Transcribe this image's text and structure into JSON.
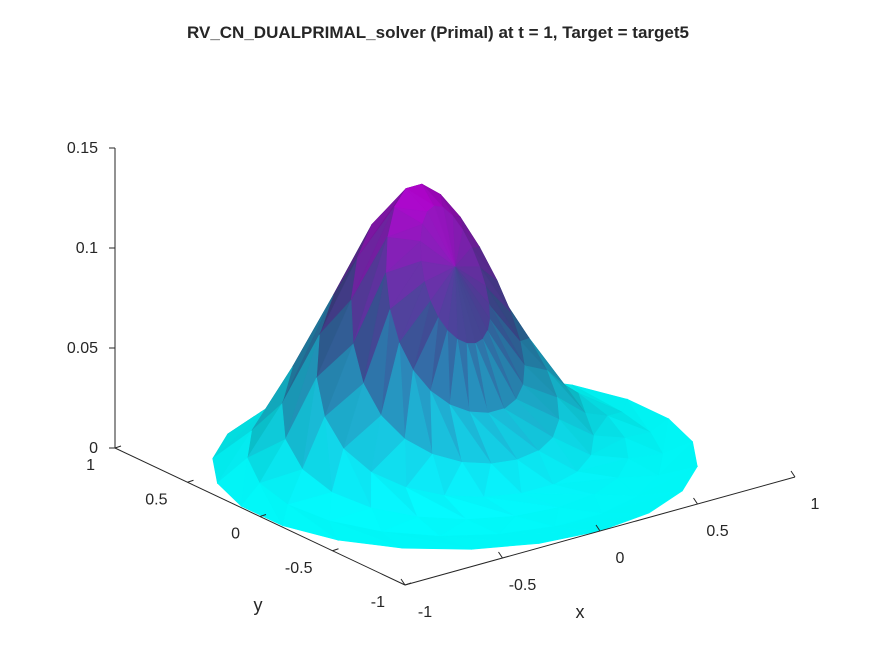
{
  "chart_data": {
    "type": "surface",
    "title": "RV_CN_DUALPRIMAL_solver (Primal) at t = 1, Target = target5",
    "xlabel": "x",
    "ylabel": "y",
    "zlabel": "",
    "xlim": [
      -1,
      1
    ],
    "ylim": [
      -1,
      1
    ],
    "zlim": [
      0,
      0.15
    ],
    "x_ticks": [
      "-1",
      "-0.5",
      "0",
      "0.5",
      "1"
    ],
    "y_ticks": [
      "-1",
      "-0.5",
      "0",
      "0.5",
      "1"
    ],
    "z_ticks": [
      "0",
      "0.05",
      "0.1",
      "0.15"
    ],
    "grid": false,
    "domain": "unit disk",
    "peak": {
      "x": 0.0,
      "y": 0.25,
      "z": 0.13
    },
    "colormap": {
      "low": "#00ffff",
      "mid": "#3a4a8c",
      "high": "#b000c8"
    },
    "mesh": "triangulated"
  }
}
